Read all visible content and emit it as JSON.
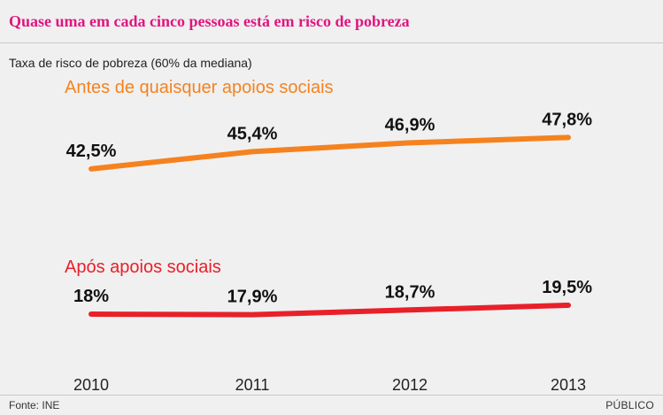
{
  "header": {
    "title": "Quase uma em cada cinco pessoas está em risco de pobreza"
  },
  "footer": {
    "source": "Fonte: INE",
    "brand": "PÚBLICO"
  },
  "colors": {
    "title": "#e0157f",
    "before": "#f5821f",
    "after": "#e8202a"
  },
  "chart_data": {
    "type": "line",
    "title": "Quase uma em cada cinco pessoas está em risco de pobreza",
    "ylabel": "Taxa de risco de pobreza (60% da mediana)",
    "x": [
      "2010",
      "2011",
      "2012",
      "2013"
    ],
    "grid": false,
    "series": [
      {
        "name": "Antes de quaisquer apoios sociais",
        "values": [
          42.5,
          45.4,
          46.9,
          47.8
        ],
        "labels": [
          "42,5%",
          "45,4%",
          "46,9%",
          "47,8%"
        ],
        "color": "#f5821f"
      },
      {
        "name": "Após apoios sociais",
        "values": [
          18,
          17.9,
          18.7,
          19.5
        ],
        "labels": [
          "18%",
          "17,9%",
          "18,7%",
          "19,5%"
        ],
        "color": "#e8202a"
      }
    ]
  }
}
